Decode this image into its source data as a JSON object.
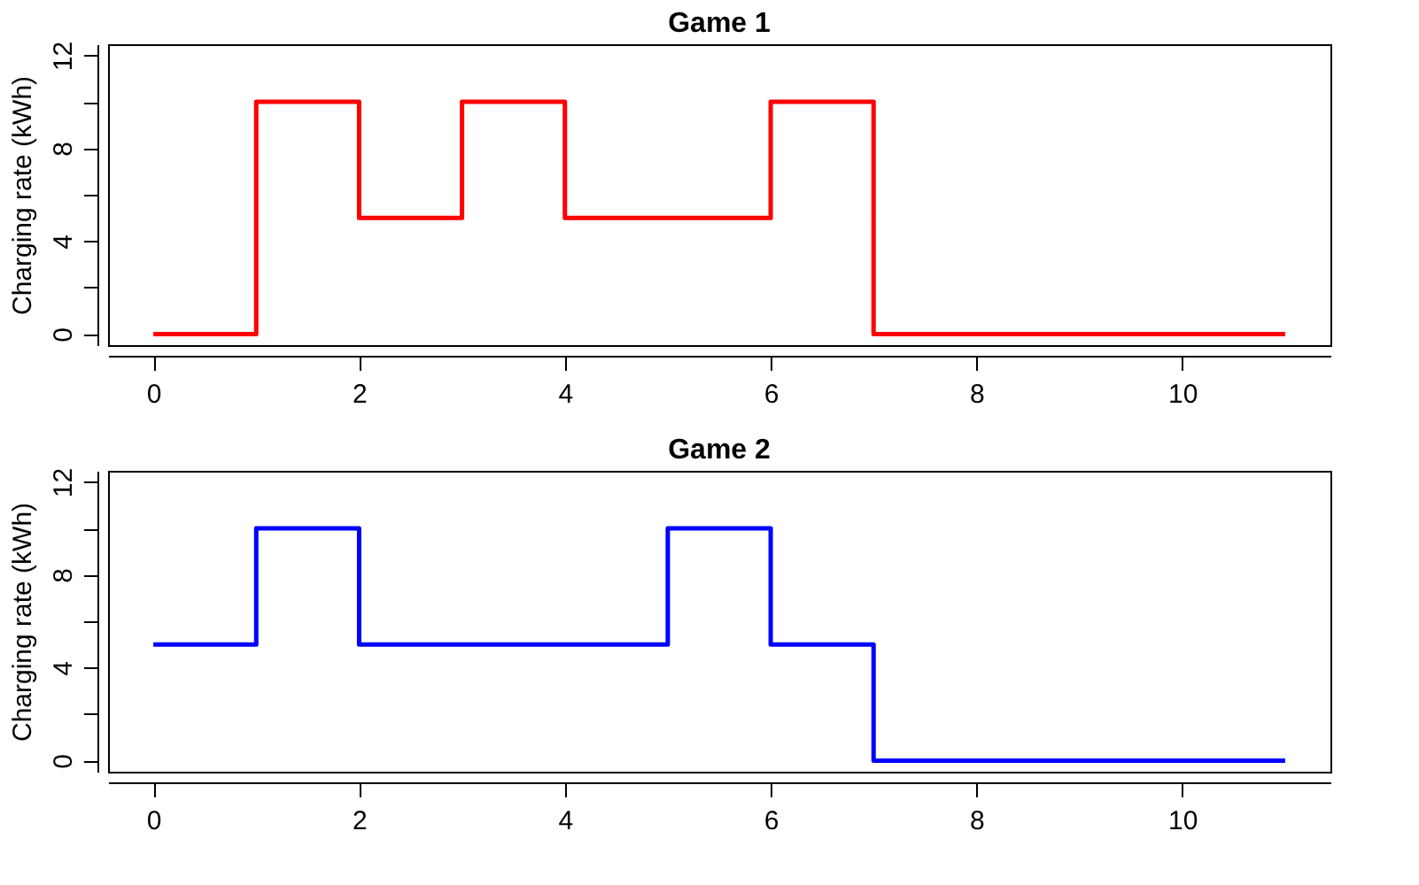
{
  "chart_data": [
    {
      "type": "step",
      "title": "Game 1",
      "ylabel": "Charging rate (kWh)",
      "x": [
        0,
        1,
        2,
        3,
        4,
        5,
        6,
        7,
        8,
        9,
        10,
        11
      ],
      "series": [
        {
          "color": "#ff0000",
          "values": [
            0,
            10,
            5,
            10,
            5,
            5,
            10,
            0,
            0,
            0,
            0,
            0
          ]
        }
      ],
      "xlim": [
        -0.44,
        11.44
      ],
      "xticks": [
        0,
        2,
        4,
        6,
        8,
        10
      ],
      "ylim": [
        -0.48,
        12.48
      ],
      "yticks": [
        0,
        {
          "value": 2,
          "label": null
        },
        4,
        {
          "value": 6,
          "label": null
        },
        8,
        {
          "value": 10,
          "label": null
        },
        12
      ],
      "grid": false,
      "marker": "none",
      "line_style": "solid"
    },
    {
      "type": "step",
      "title": "Game 2",
      "ylabel": "Charging rate (kWh)",
      "x": [
        0,
        1,
        2,
        3,
        4,
        5,
        6,
        7,
        8,
        9,
        10,
        11
      ],
      "series": [
        {
          "color": "#0000ff",
          "values": [
            5,
            10,
            5,
            5,
            5,
            10,
            5,
            0,
            0,
            0,
            0,
            0
          ]
        }
      ],
      "xlim": [
        -0.44,
        11.44
      ],
      "xticks": [
        0,
        2,
        4,
        6,
        8,
        10
      ],
      "ylim": [
        -0.48,
        12.48
      ],
      "yticks": [
        0,
        {
          "value": 2,
          "label": null
        },
        4,
        {
          "value": 6,
          "label": null
        },
        8,
        {
          "value": 10,
          "label": null
        },
        12
      ],
      "grid": false,
      "marker": "none",
      "line_style": "solid"
    }
  ]
}
